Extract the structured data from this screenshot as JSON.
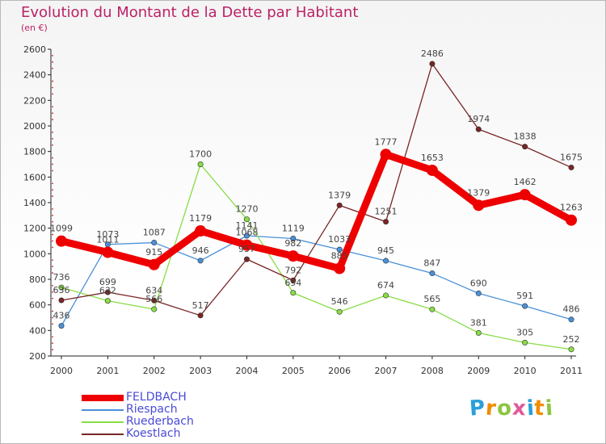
{
  "title": "Evolution du Montant de la Dette par Habitant",
  "subtitle": "(en €)",
  "logo_text": "Proxiti",
  "logo_colors": [
    "#2aa0d8",
    "#f08c00",
    "#8cc63f",
    "#e05a9a",
    "#2aa0d8",
    "#f08c00",
    "#8cc63f"
  ],
  "chart_data": {
    "type": "line",
    "title": "Evolution du Montant de la Dette par Habitant",
    "ylabel": "(en €)",
    "xlabel": "",
    "ylim": [
      200,
      2600
    ],
    "yticks": [
      200,
      400,
      600,
      800,
      1000,
      1200,
      1400,
      1600,
      1800,
      2000,
      2200,
      2400,
      2600
    ],
    "grid": false,
    "legend_position": "bottom-left",
    "x": [
      "2000",
      "2001",
      "2002",
      "2003",
      "2004",
      "2005",
      "2006",
      "2007",
      "2008",
      "2009",
      "2010",
      "2011"
    ],
    "series": [
      {
        "name": "FELDBACH",
        "color": "#ee0000",
        "emphasis": true,
        "values": [
          1099,
          1011,
          915,
          1179,
          1068,
          982,
          885,
          1777,
          1653,
          1379,
          1462,
          1263
        ]
      },
      {
        "name": "Riespach",
        "color": "#4a90d9",
        "values": [
          436,
          1073,
          1087,
          946,
          1141,
          1119,
          1033,
          945,
          847,
          690,
          591,
          486
        ]
      },
      {
        "name": "Ruederbach",
        "color": "#88dd44",
        "values": [
          736,
          632,
          566,
          1700,
          1270,
          694,
          546,
          674,
          565,
          381,
          305,
          252
        ]
      },
      {
        "name": "Koestlach",
        "color": "#7a2424",
        "values": [
          636,
          699,
          634,
          517,
          957,
          792,
          1379,
          1251,
          2486,
          1974,
          1838,
          1675
        ]
      }
    ]
  }
}
